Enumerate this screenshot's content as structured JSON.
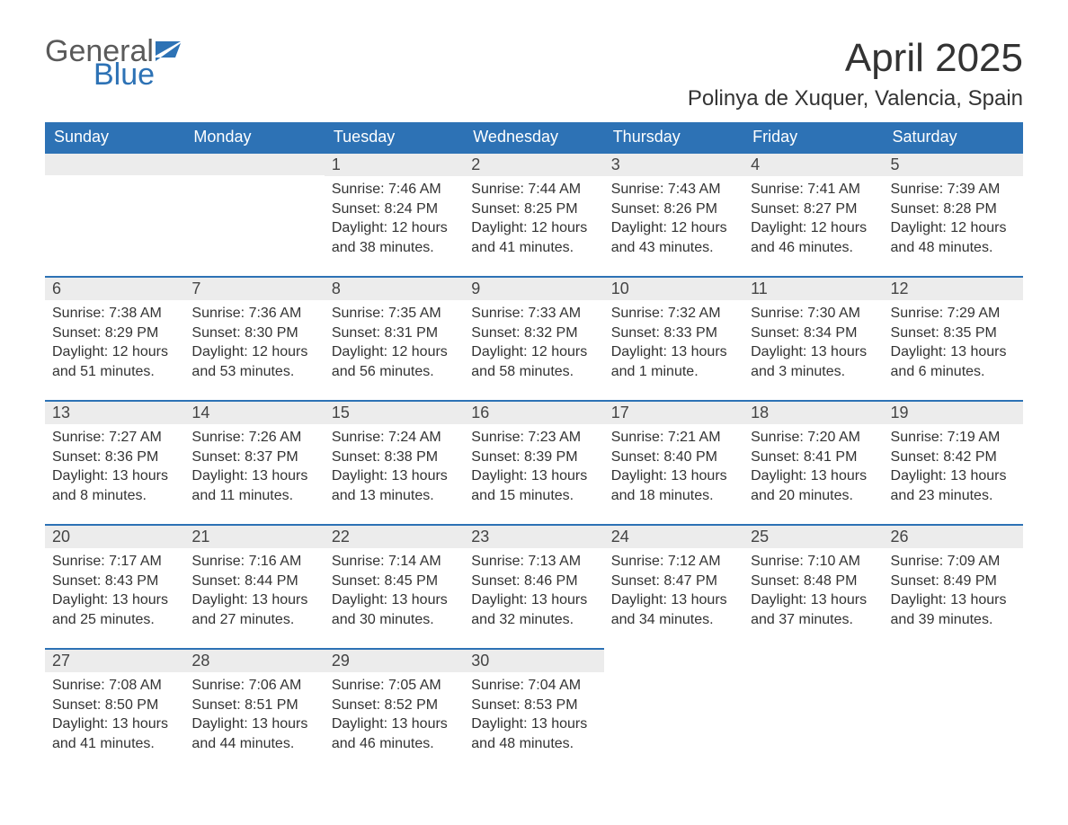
{
  "logo": {
    "text1": "General",
    "text2": "Blue"
  },
  "header": {
    "month_title": "April 2025",
    "location": "Polinya de Xuquer, Valencia, Spain"
  },
  "colors": {
    "brand_blue": "#2d72b5",
    "header_row_bg": "#2d72b5",
    "header_row_text": "#ffffff",
    "daynum_bg": "#ececec",
    "text": "#333333",
    "background": "#ffffff"
  },
  "typography": {
    "month_title_fontsize": 44,
    "location_fontsize": 24,
    "weekday_fontsize": 18,
    "daynum_fontsize": 18,
    "body_fontsize": 16,
    "logo_fontsize": 34
  },
  "weekdays": [
    "Sunday",
    "Monday",
    "Tuesday",
    "Wednesday",
    "Thursday",
    "Friday",
    "Saturday"
  ],
  "weeks": [
    [
      null,
      null,
      {
        "n": "1",
        "sunrise": "Sunrise: 7:46 AM",
        "sunset": "Sunset: 8:24 PM",
        "daylight": "Daylight: 12 hours and 38 minutes."
      },
      {
        "n": "2",
        "sunrise": "Sunrise: 7:44 AM",
        "sunset": "Sunset: 8:25 PM",
        "daylight": "Daylight: 12 hours and 41 minutes."
      },
      {
        "n": "3",
        "sunrise": "Sunrise: 7:43 AM",
        "sunset": "Sunset: 8:26 PM",
        "daylight": "Daylight: 12 hours and 43 minutes."
      },
      {
        "n": "4",
        "sunrise": "Sunrise: 7:41 AM",
        "sunset": "Sunset: 8:27 PM",
        "daylight": "Daylight: 12 hours and 46 minutes."
      },
      {
        "n": "5",
        "sunrise": "Sunrise: 7:39 AM",
        "sunset": "Sunset: 8:28 PM",
        "daylight": "Daylight: 12 hours and 48 minutes."
      }
    ],
    [
      {
        "n": "6",
        "sunrise": "Sunrise: 7:38 AM",
        "sunset": "Sunset: 8:29 PM",
        "daylight": "Daylight: 12 hours and 51 minutes."
      },
      {
        "n": "7",
        "sunrise": "Sunrise: 7:36 AM",
        "sunset": "Sunset: 8:30 PM",
        "daylight": "Daylight: 12 hours and 53 minutes."
      },
      {
        "n": "8",
        "sunrise": "Sunrise: 7:35 AM",
        "sunset": "Sunset: 8:31 PM",
        "daylight": "Daylight: 12 hours and 56 minutes."
      },
      {
        "n": "9",
        "sunrise": "Sunrise: 7:33 AM",
        "sunset": "Sunset: 8:32 PM",
        "daylight": "Daylight: 12 hours and 58 minutes."
      },
      {
        "n": "10",
        "sunrise": "Sunrise: 7:32 AM",
        "sunset": "Sunset: 8:33 PM",
        "daylight": "Daylight: 13 hours and 1 minute."
      },
      {
        "n": "11",
        "sunrise": "Sunrise: 7:30 AM",
        "sunset": "Sunset: 8:34 PM",
        "daylight": "Daylight: 13 hours and 3 minutes."
      },
      {
        "n": "12",
        "sunrise": "Sunrise: 7:29 AM",
        "sunset": "Sunset: 8:35 PM",
        "daylight": "Daylight: 13 hours and 6 minutes."
      }
    ],
    [
      {
        "n": "13",
        "sunrise": "Sunrise: 7:27 AM",
        "sunset": "Sunset: 8:36 PM",
        "daylight": "Daylight: 13 hours and 8 minutes."
      },
      {
        "n": "14",
        "sunrise": "Sunrise: 7:26 AM",
        "sunset": "Sunset: 8:37 PM",
        "daylight": "Daylight: 13 hours and 11 minutes."
      },
      {
        "n": "15",
        "sunrise": "Sunrise: 7:24 AM",
        "sunset": "Sunset: 8:38 PM",
        "daylight": "Daylight: 13 hours and 13 minutes."
      },
      {
        "n": "16",
        "sunrise": "Sunrise: 7:23 AM",
        "sunset": "Sunset: 8:39 PM",
        "daylight": "Daylight: 13 hours and 15 minutes."
      },
      {
        "n": "17",
        "sunrise": "Sunrise: 7:21 AM",
        "sunset": "Sunset: 8:40 PM",
        "daylight": "Daylight: 13 hours and 18 minutes."
      },
      {
        "n": "18",
        "sunrise": "Sunrise: 7:20 AM",
        "sunset": "Sunset: 8:41 PM",
        "daylight": "Daylight: 13 hours and 20 minutes."
      },
      {
        "n": "19",
        "sunrise": "Sunrise: 7:19 AM",
        "sunset": "Sunset: 8:42 PM",
        "daylight": "Daylight: 13 hours and 23 minutes."
      }
    ],
    [
      {
        "n": "20",
        "sunrise": "Sunrise: 7:17 AM",
        "sunset": "Sunset: 8:43 PM",
        "daylight": "Daylight: 13 hours and 25 minutes."
      },
      {
        "n": "21",
        "sunrise": "Sunrise: 7:16 AM",
        "sunset": "Sunset: 8:44 PM",
        "daylight": "Daylight: 13 hours and 27 minutes."
      },
      {
        "n": "22",
        "sunrise": "Sunrise: 7:14 AM",
        "sunset": "Sunset: 8:45 PM",
        "daylight": "Daylight: 13 hours and 30 minutes."
      },
      {
        "n": "23",
        "sunrise": "Sunrise: 7:13 AM",
        "sunset": "Sunset: 8:46 PM",
        "daylight": "Daylight: 13 hours and 32 minutes."
      },
      {
        "n": "24",
        "sunrise": "Sunrise: 7:12 AM",
        "sunset": "Sunset: 8:47 PM",
        "daylight": "Daylight: 13 hours and 34 minutes."
      },
      {
        "n": "25",
        "sunrise": "Sunrise: 7:10 AM",
        "sunset": "Sunset: 8:48 PM",
        "daylight": "Daylight: 13 hours and 37 minutes."
      },
      {
        "n": "26",
        "sunrise": "Sunrise: 7:09 AM",
        "sunset": "Sunset: 8:49 PM",
        "daylight": "Daylight: 13 hours and 39 minutes."
      }
    ],
    [
      {
        "n": "27",
        "sunrise": "Sunrise: 7:08 AM",
        "sunset": "Sunset: 8:50 PM",
        "daylight": "Daylight: 13 hours and 41 minutes."
      },
      {
        "n": "28",
        "sunrise": "Sunrise: 7:06 AM",
        "sunset": "Sunset: 8:51 PM",
        "daylight": "Daylight: 13 hours and 44 minutes."
      },
      {
        "n": "29",
        "sunrise": "Sunrise: 7:05 AM",
        "sunset": "Sunset: 8:52 PM",
        "daylight": "Daylight: 13 hours and 46 minutes."
      },
      {
        "n": "30",
        "sunrise": "Sunrise: 7:04 AM",
        "sunset": "Sunset: 8:53 PM",
        "daylight": "Daylight: 13 hours and 48 minutes."
      },
      null,
      null,
      null
    ]
  ]
}
